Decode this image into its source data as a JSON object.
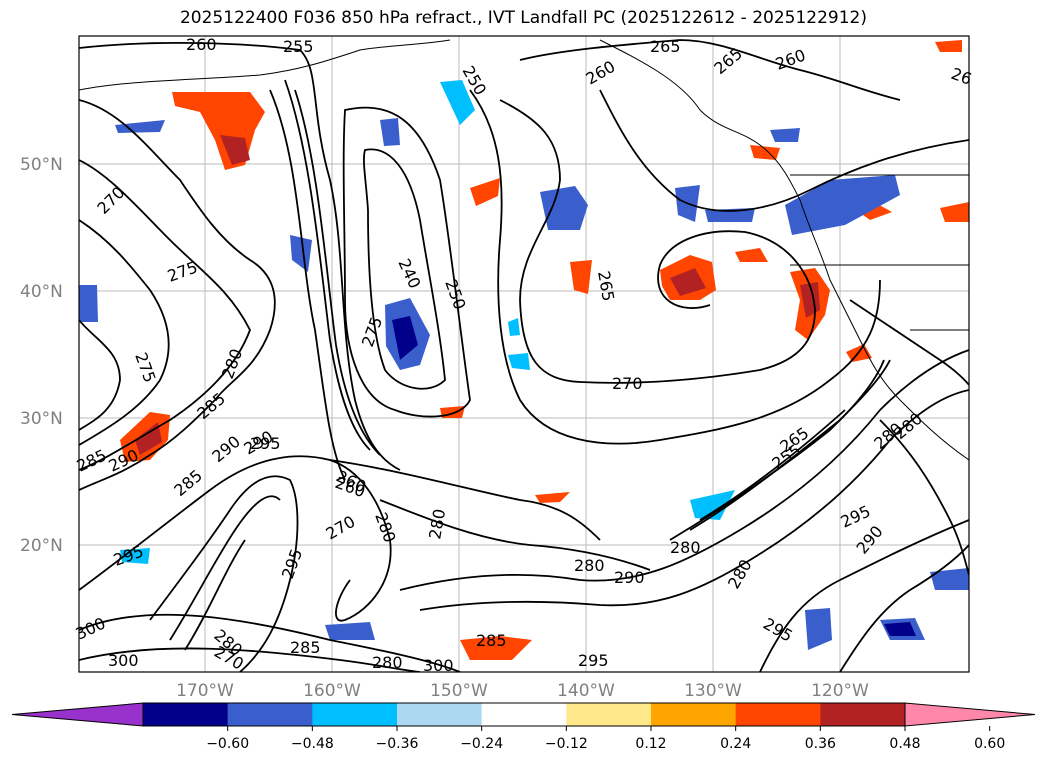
{
  "title": "2025122400 F036 850 hPa refract., IVT Landfall PC (2025122612 - 2025122912)",
  "lat_labels": [
    "50°N",
    "40°N",
    "30°N",
    "20°N"
  ],
  "lon_labels": [
    "170°W",
    "160°W",
    "150°W",
    "140°W",
    "130°W",
    "120°W"
  ],
  "contour_labels": [
    "260",
    "255",
    "250",
    "265",
    "265",
    "260",
    "260",
    "26",
    "270",
    "275",
    "240",
    "250",
    "265",
    "275",
    "275",
    "270",
    "280",
    "285",
    "290",
    "295",
    "290",
    "285",
    "285",
    "295",
    "295",
    "260",
    "280",
    "270",
    "280",
    "280",
    "290",
    "295",
    "290",
    "280",
    "265",
    "255",
    "280",
    "295",
    "285",
    "280",
    "300",
    "300",
    "280",
    "300",
    "285",
    "270",
    "295",
    "280",
    "260",
    "280",
    "290"
  ],
  "colorbar": {
    "ticks": [
      "−0.60",
      "−0.48",
      "−0.36",
      "−0.24",
      "−0.12",
      "0.12",
      "0.24",
      "0.36",
      "0.48",
      "0.60"
    ],
    "colors": [
      "#9932CC",
      "#00008B",
      "#3A5FCD",
      "#00BFFF",
      "#ADD8F2",
      "#FFFFFF",
      "#FFE88A",
      "#FFA500",
      "#FF4500",
      "#B22222",
      "#FF88AA"
    ]
  }
}
